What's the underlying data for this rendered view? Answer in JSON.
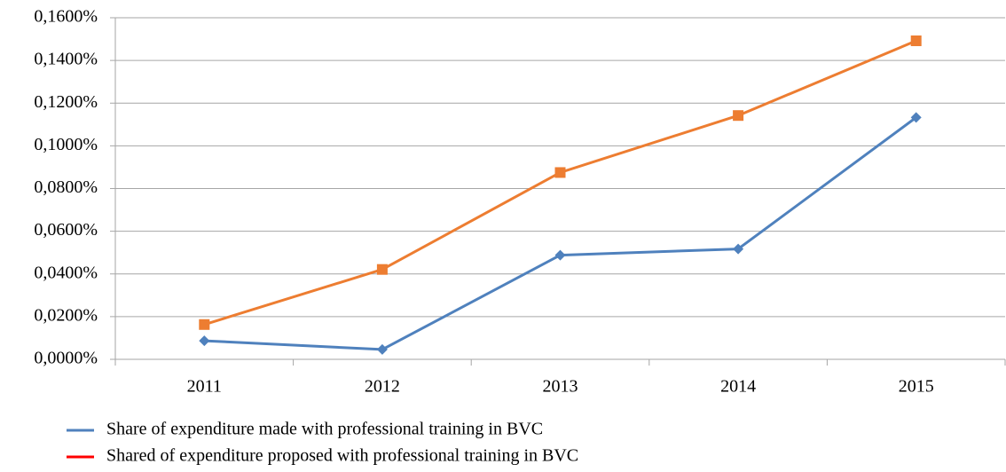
{
  "chart_data": {
    "type": "line",
    "categories": [
      "2011",
      "2012",
      "2013",
      "2014",
      "2015"
    ],
    "series": [
      {
        "name": "Share of expenditure made with professional training in BVC",
        "color": "#4f81bd",
        "legend_color": "#4f81bd",
        "marker": "diamond",
        "values": [
          0.0087,
          0.0046,
          0.0488,
          0.0517,
          0.1133
        ]
      },
      {
        "name": "Shared of expenditure proposed with professional training in BVC",
        "color": "#ed7d31",
        "legend_color": "#ff0000",
        "marker": "square",
        "values": [
          0.0163,
          0.0421,
          0.0875,
          0.1142,
          0.1492
        ]
      }
    ],
    "ylim": [
      0,
      0.16
    ],
    "yticks": [
      {
        "value": 0,
        "label": "0,0000%"
      },
      {
        "value": 0.02,
        "label": "0,0200%"
      },
      {
        "value": 0.04,
        "label": "0,0400%"
      },
      {
        "value": 0.06,
        "label": "0,0600%"
      },
      {
        "value": 0.08,
        "label": "0,0800%"
      },
      {
        "value": 0.1,
        "label": "0,1000%"
      },
      {
        "value": 0.12,
        "label": "0,1200%"
      },
      {
        "value": 0.14,
        "label": "0,1400%"
      },
      {
        "value": 0.16,
        "label": "0,1600%"
      }
    ],
    "grid": true,
    "legend": "bottom-left"
  }
}
